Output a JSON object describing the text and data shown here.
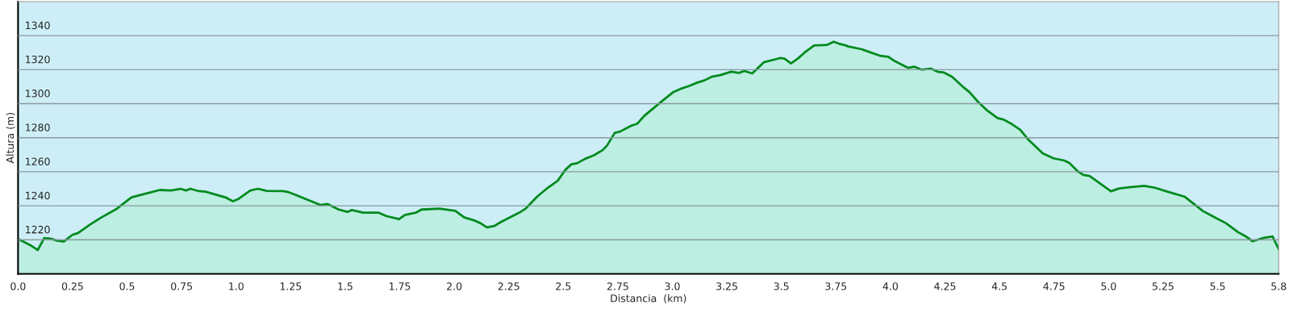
{
  "chart_data": {
    "type": "area",
    "xlabel": "Distancia  (km)",
    "ylabel": "Altura (m)",
    "x": [
      0,
      0.055,
      0.09,
      0.12,
      0.15,
      0.18,
      0.21,
      0.25,
      0.275,
      0.33,
      0.38,
      0.45,
      0.52,
      0.58,
      0.65,
      0.7,
      0.745,
      0.77,
      0.79,
      0.83,
      0.86,
      0.95,
      0.985,
      1.01,
      1.065,
      1.1,
      1.14,
      1.215,
      1.24,
      1.27,
      1.315,
      1.386,
      1.42,
      1.47,
      1.51,
      1.53,
      1.583,
      1.652,
      1.688,
      1.747,
      1.773,
      1.825,
      1.85,
      1.933,
      2.005,
      2.045,
      2.09,
      2.12,
      2.15,
      2.183,
      2.21,
      2.3,
      2.327,
      2.38,
      2.43,
      2.474,
      2.51,
      2.537,
      2.563,
      2.6,
      2.64,
      2.68,
      2.7,
      2.736,
      2.76,
      2.81,
      2.84,
      2.87,
      2.94,
      3.002,
      3.035,
      3.075,
      3.114,
      3.147,
      3.18,
      3.219,
      3.27,
      3.305,
      3.33,
      3.366,
      3.396,
      3.42,
      3.494,
      3.514,
      3.544,
      3.575,
      3.606,
      3.65,
      3.71,
      3.74,
      3.763,
      3.796,
      3.807,
      3.868,
      3.9,
      3.952,
      3.99,
      4.02,
      4.08,
      4.11,
      4.142,
      4.185,
      4.215,
      4.246,
      4.283,
      4.338,
      4.362,
      4.405,
      4.442,
      4.491,
      4.518,
      4.558,
      4.595,
      4.632,
      4.699,
      4.748,
      4.797,
      4.822,
      4.858,
      4.885,
      4.913,
      5.011,
      5.048,
      5.103,
      5.164,
      5.213,
      5.274,
      5.348,
      5.433,
      5.482,
      5.538,
      5.593,
      5.627,
      5.66,
      5.715,
      5.752,
      5.78
    ],
    "series": [
      {
        "color": "#008a1e",
        "values": [
          1220.5,
          1217,
          1214,
          1221,
          1220.7,
          1219.5,
          1219,
          1223,
          1224,
          1229,
          1233,
          1238,
          1245,
          1247,
          1249.3,
          1249,
          1250,
          1249,
          1250,
          1248.6,
          1248.3,
          1245,
          1242.7,
          1244,
          1249,
          1250,
          1248.8,
          1248.6,
          1248,
          1246.6,
          1244.2,
          1240.5,
          1241,
          1237.8,
          1236.4,
          1237.5,
          1236,
          1236,
          1234,
          1232.2,
          1234.6,
          1236,
          1237.8,
          1238.3,
          1237,
          1233.2,
          1231.5,
          1229.8,
          1227.3,
          1228.1,
          1230.2,
          1236.1,
          1238.3,
          1245.4,
          1250.7,
          1254.7,
          1261.2,
          1264.4,
          1265,
          1267.6,
          1269.7,
          1272.7,
          1275.3,
          1282.9,
          1283.6,
          1287,
          1288.3,
          1292.7,
          1300.2,
          1306.6,
          1308.6,
          1310.3,
          1312.4,
          1313.7,
          1315.8,
          1316.8,
          1318.8,
          1318.1,
          1319.2,
          1317.8,
          1321.4,
          1324.4,
          1326.8,
          1326.5,
          1323.7,
          1326.5,
          1330,
          1334.2,
          1334.6,
          1336.4,
          1335.3,
          1334.2,
          1333.6,
          1332,
          1330.5,
          1328.2,
          1327.6,
          1325,
          1321.1,
          1321.7,
          1320,
          1320.6,
          1318.8,
          1318.3,
          1315.8,
          1309.3,
          1306.8,
          1300.6,
          1296.2,
          1291.5,
          1290.7,
          1287.9,
          1284.7,
          1278.9,
          1270.7,
          1267.9,
          1266.6,
          1265,
          1260.3,
          1258.1,
          1257.5,
          1248.5,
          1250.2,
          1251,
          1251.7,
          1250.6,
          1248.2,
          1245.4,
          1236.9,
          1233.5,
          1229.8,
          1224.6,
          1222.2,
          1219.2,
          1221.3,
          1222,
          1214.6
        ]
      }
    ],
    "xlim": [
      0,
      5.78
    ],
    "xticks": [
      {
        "value": 0,
        "label": "0.0"
      },
      0.25,
      0.5,
      0.75,
      {
        "value": 1,
        "label": "1.0"
      },
      1.25,
      1.5,
      1.75,
      {
        "value": 2,
        "label": "2.0"
      },
      2.25,
      2.5,
      2.75,
      {
        "value": 3,
        "label": "3.0"
      },
      3.25,
      3.5,
      3.75,
      {
        "value": 4,
        "label": "4.0"
      },
      4.25,
      4.5,
      4.75,
      {
        "value": 5,
        "label": "5.0"
      },
      5.25,
      5.5,
      {
        "value": 5.78,
        "label": "5.8"
      }
    ],
    "ylim": [
      1200,
      1360
    ],
    "yticks": [
      1220,
      1240,
      1260,
      1280,
      1300,
      1320,
      1340
    ],
    "grid": "y",
    "legend": false
  }
}
